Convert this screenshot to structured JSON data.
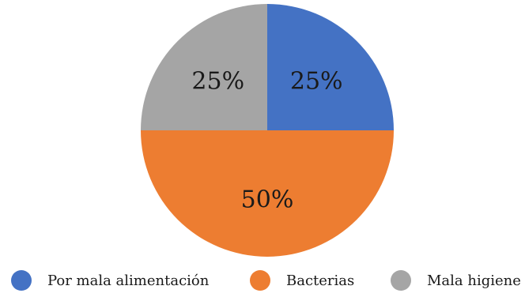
{
  "chart_data": {
    "type": "pie",
    "title": "",
    "start_angle": "12 o'clock, clockwise",
    "series": [
      {
        "name": "",
        "slices": [
          {
            "label": "Por mala alimentación",
            "value": 25,
            "display": "25%",
            "color": "#4472C4"
          },
          {
            "label": "Bacterias",
            "value": 50,
            "display": "50%",
            "color": "#ED7D31"
          },
          {
            "label": "Mala higiene",
            "value": 25,
            "display": "25%",
            "color": "#A5A5A5"
          }
        ]
      }
    ],
    "legend": {
      "placement": "bottom",
      "items": [
        "Por mala alimentación",
        "Bacterias",
        "Mala higiene"
      ]
    }
  }
}
